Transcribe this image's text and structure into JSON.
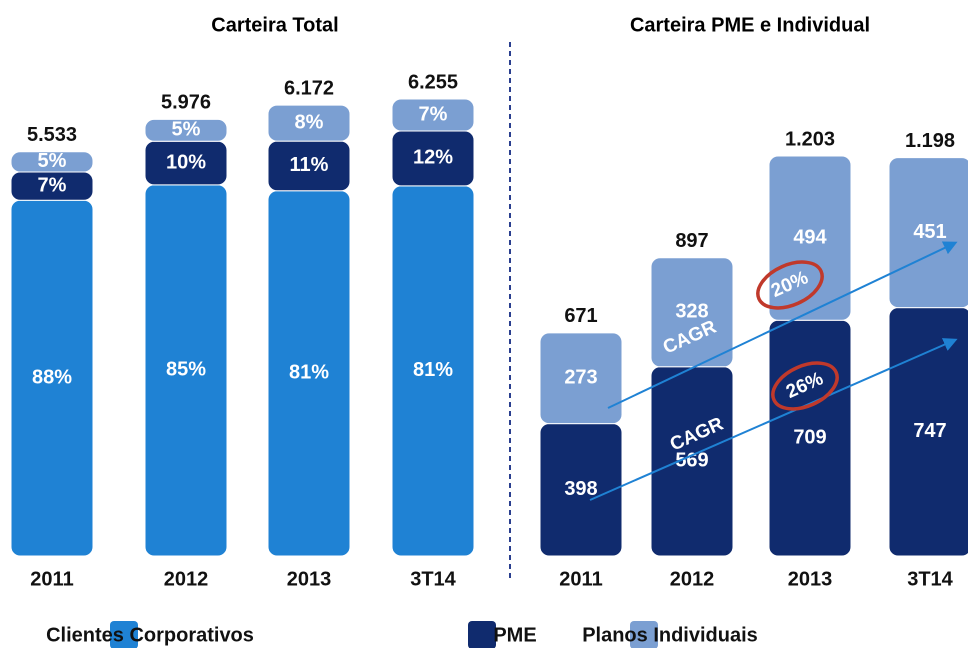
{
  "chart_data": [
    {
      "type": "stacked_bar",
      "title": "Carteira Total",
      "categories": [
        "2011",
        "2012",
        "2013",
        "3T14"
      ],
      "totals": {
        "values": [
          5533,
          5976,
          6172,
          6255
        ],
        "value_labels": [
          "5.533",
          "5.976",
          "6.172",
          "6.255"
        ]
      },
      "series": [
        {
          "name": "Clientes Corporativos",
          "color": "#1f82d4",
          "values": [
            88,
            85,
            81,
            81
          ],
          "value_labels": [
            "88%",
            "85%",
            "81%",
            "81%"
          ]
        },
        {
          "name": "PME",
          "color": "#102b6e",
          "values": [
            7,
            10,
            11,
            12
          ],
          "value_labels": [
            "7%",
            "10%",
            "11%",
            "12%"
          ]
        },
        {
          "name": "Planos Individuais",
          "color": "#7b9fd2",
          "values": [
            5,
            5,
            8,
            7
          ],
          "value_labels": [
            "5%",
            "5%",
            "8%",
            "7%"
          ]
        }
      ]
    },
    {
      "type": "stacked_bar",
      "title": "Carteira PME e Individual",
      "categories": [
        "2011",
        "2012",
        "2013",
        "3T14"
      ],
      "totals": {
        "values": [
          671,
          897,
          1203,
          1198
        ],
        "value_labels": [
          "671",
          "897",
          "1.203",
          "1.198"
        ]
      },
      "series": [
        {
          "color": "#102b6e",
          "values": [
            398,
            569,
            709,
            747
          ]
        },
        {
          "color": "#7b9fd2",
          "values": [
            273,
            328,
            494,
            451
          ]
        }
      ],
      "annotations": [
        {
          "label": "CAGR",
          "operator": "=",
          "value": 20,
          "value_label": "20%"
        },
        {
          "label": "CAGR",
          "operator": "=",
          "value": 26,
          "value_label": "26%"
        }
      ]
    }
  ]
}
